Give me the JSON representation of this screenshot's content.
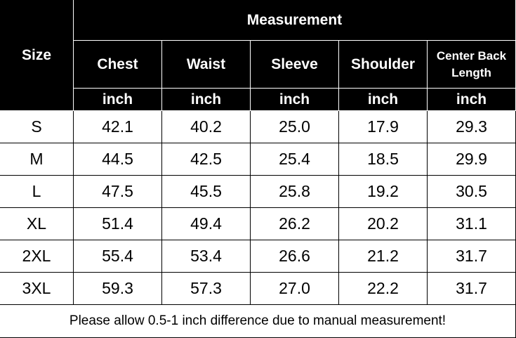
{
  "table": {
    "size_label": "Size",
    "group_label": "Measurement",
    "columns": [
      {
        "name": "Chest",
        "unit": "inch"
      },
      {
        "name": "Waist",
        "unit": "inch"
      },
      {
        "name": "Sleeve",
        "unit": "inch"
      },
      {
        "name": "Shoulder",
        "unit": "inch"
      },
      {
        "name": "Center Back Length",
        "unit": "inch"
      }
    ],
    "rows": [
      {
        "size": "S",
        "values": [
          "42.1",
          "40.2",
          "25.0",
          "17.9",
          "29.3"
        ]
      },
      {
        "size": "M",
        "values": [
          "44.5",
          "42.5",
          "25.4",
          "18.5",
          "29.9"
        ]
      },
      {
        "size": "L",
        "values": [
          "47.5",
          "45.5",
          "25.8",
          "19.2",
          "30.5"
        ]
      },
      {
        "size": "XL",
        "values": [
          "51.4",
          "49.4",
          "26.2",
          "20.2",
          "31.1"
        ]
      },
      {
        "size": "2XL",
        "values": [
          "55.4",
          "53.4",
          "26.6",
          "21.2",
          "31.7"
        ]
      },
      {
        "size": "3XL",
        "values": [
          "59.3",
          "57.3",
          "27.0",
          "22.2",
          "31.7"
        ]
      }
    ],
    "note": "Please allow 0.5-1 inch difference due to manual measurement!"
  }
}
